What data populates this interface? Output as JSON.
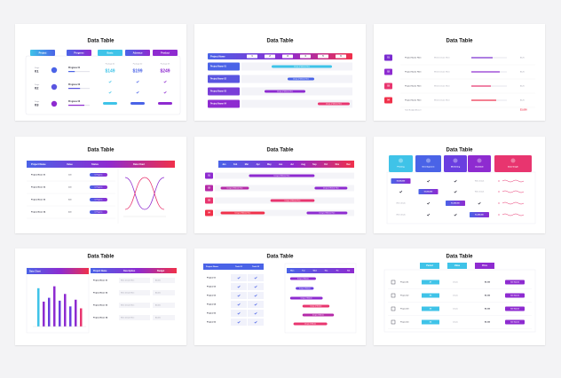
{
  "slides": [
    {
      "title": "Data Table",
      "headers": [
        "Project",
        "Progress",
        "Basic",
        "Advance",
        "Product"
      ],
      "stages": [
        {
          "label": "Stage",
          "number": "01"
        },
        {
          "label": "Stage",
          "number": "02"
        },
        {
          "label": "Stage",
          "number": "03"
        }
      ],
      "progress": [
        {
          "label": "Progress 01",
          "value": 30
        },
        {
          "label": "Progress 02",
          "value": 55
        },
        {
          "label": "Progress 03",
          "value": 75
        }
      ],
      "plans": [
        {
          "package": "Package 01",
          "price": "$149"
        },
        {
          "package": "Package 02",
          "price": "$199"
        },
        {
          "package": "Package 03",
          "price": "$249"
        }
      ]
    },
    {
      "title": "Data Table",
      "header": "Project Name",
      "columns": [
        "1",
        "2",
        "3",
        "4",
        "5",
        "6"
      ],
      "rows": [
        {
          "name": "Project Name 01",
          "task": "Design of Website Here",
          "start": 1.6,
          "end": 5
        },
        {
          "name": "Project Name 02",
          "task": "Design of Website Here",
          "start": 2.5,
          "end": 4
        },
        {
          "name": "Project Name 03",
          "task": "Design of Website Here",
          "start": 1.2,
          "end": 3.5
        },
        {
          "name": "Project Name 04",
          "task": "Design of Website Here",
          "start": 4.2,
          "end": 6
        }
      ]
    },
    {
      "title": "Data Table",
      "rows": [
        {
          "number": "01",
          "name": "Project Name Here",
          "detail": "Write Details Here",
          "progress": 60,
          "price": "$120"
        },
        {
          "number": "02",
          "name": "Project Name Here",
          "detail": "Write Details Here",
          "progress": 80,
          "price": "$120"
        },
        {
          "number": "03",
          "name": "Project Name Here",
          "detail": "Write Details Here",
          "progress": 55,
          "price": "$120"
        },
        {
          "number": "04",
          "name": "Project Name Here",
          "detail": "Write Details Here",
          "progress": 70,
          "price": "$120"
        }
      ],
      "total_label": "Total Budget Amount",
      "total": "$1,000"
    },
    {
      "title": "Data Table",
      "headers": [
        "Project Name",
        "Value",
        "Status",
        "Data Chart"
      ],
      "rows": [
        {
          "name": "Project Name 01",
          "value": "100",
          "status": "In Progress"
        },
        {
          "name": "Project Name 02",
          "value": "200",
          "status": "In Progress"
        },
        {
          "name": "Project Name 03",
          "value": "300",
          "status": "In Progress"
        },
        {
          "name": "Project Name 04",
          "value": "400",
          "status": "In Progress"
        }
      ]
    },
    {
      "title": "Data Table",
      "months": [
        "Jan",
        "Feb",
        "Mar",
        "Apr",
        "May",
        "Jun",
        "Jul",
        "Aug",
        "Sep",
        "Oct",
        "Nov",
        "Dec"
      ],
      "rows": [
        {
          "number": "01",
          "tasks": [
            {
              "label": "Design of Website Here",
              "start": 2.7,
              "end": 8.5
            }
          ]
        },
        {
          "number": "02",
          "tasks": [
            {
              "label": "Design of Website Here",
              "start": 0.2,
              "end": 2.7
            },
            {
              "label": "Design of Website Here",
              "start": 8.5,
              "end": 11.4
            }
          ]
        },
        {
          "number": "03",
          "tasks": [
            {
              "label": "Design of Website Here",
              "start": 4.6,
              "end": 8.5
            }
          ]
        },
        {
          "number": "04",
          "tasks": [
            {
              "label": "Design of Website Here",
              "start": 0.2,
              "end": 4.1
            },
            {
              "label": "Design of Website Here",
              "start": 7.8,
              "end": 11.4
            }
          ]
        }
      ]
    },
    {
      "title": "Data Table",
      "columns": [
        "Printing",
        "Development",
        "Marketing",
        "Available",
        "Data Graph"
      ],
      "rows": [
        {
          "highlight": "$1,000,000",
          "note": "Write details"
        },
        {
          "highlight": "$1,000,000",
          "note": "Write details"
        },
        {
          "highlight": "$1,000,000",
          "note": "Write details"
        },
        {
          "highlight": "$1,000,000",
          "note": "Write details"
        }
      ]
    },
    {
      "title": "Data Table",
      "chart_title": "Data Chart",
      "ylim": [
        0,
        100
      ],
      "bars": [
        80,
        52,
        60,
        84,
        54,
        68,
        42,
        56,
        38
      ],
      "headers": [
        "Project Name",
        "Description",
        "Budget"
      ],
      "rows": [
        {
          "name": "Project Name 01",
          "description": "Write Details Here",
          "budget": "$2,000"
        },
        {
          "name": "Project Name 02",
          "description": "Write Details Here",
          "budget": "$2,000"
        },
        {
          "name": "Project Name 03",
          "description": "Write Details Here",
          "budget": "$2,000"
        },
        {
          "name": "Project Name 04",
          "description": "Write Details Here",
          "budget": "$2,000"
        }
      ]
    },
    {
      "title": "Data Table",
      "headers": [
        "Project Name",
        "Task 01",
        "Task 02"
      ],
      "rows": [
        "Project 01",
        "Project 02",
        "Project 03",
        "Project 04",
        "Project 05",
        "Project 06"
      ],
      "days": [
        "Mon",
        "Tue",
        "Wed",
        "Thu",
        "Fri",
        "Sat"
      ],
      "tasks": [
        {
          "label": "Design of Website",
          "start": 0.3,
          "end": 2.6
        },
        {
          "label": "Design of Website",
          "start": 0.8,
          "end": 2.4
        },
        {
          "label": "Design of Website",
          "start": 0.3,
          "end": 3.2
        },
        {
          "label": "Design of Website",
          "start": 1.4,
          "end": 3.8
        },
        {
          "label": "Design of Website",
          "start": 1.4,
          "end": 4.2
        },
        {
          "label": "Design of Website",
          "start": 0.6,
          "end": 3.6
        }
      ]
    },
    {
      "title": "Data Table",
      "headers": [
        "Period",
        "Value",
        "Price"
      ],
      "rows": [
        {
          "name": "Project 01",
          "value": "47",
          "detail": "Details",
          "price": "$3,000",
          "button": "Get Started"
        },
        {
          "name": "Project 02",
          "value": "85",
          "detail": "Details",
          "price": "$3,000",
          "button": "Get Started"
        },
        {
          "name": "Project 03",
          "value": "23",
          "detail": "Details",
          "price": "$3,000",
          "button": "Get Started"
        },
        {
          "name": "Project 04",
          "value": "56",
          "detail": "Details",
          "price": "$3,000",
          "button": "Get Started"
        }
      ]
    }
  ]
}
